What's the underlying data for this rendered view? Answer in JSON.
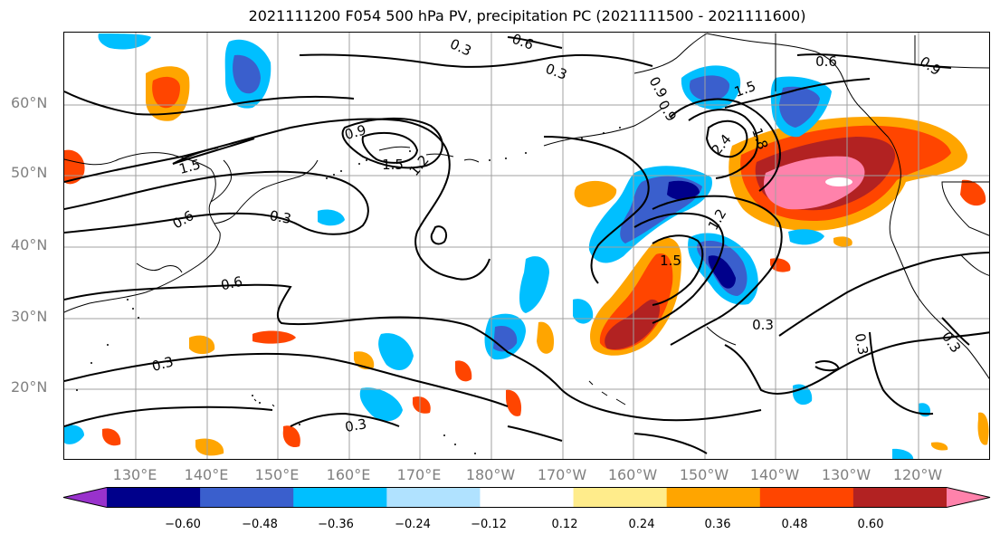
{
  "title": "2021111200 F054 500 hPa PV, precipitation PC (2021111500 - 2021111600)",
  "map": {
    "lat_labels": [
      "60°N",
      "50°N",
      "40°N",
      "30°N",
      "20°N"
    ],
    "lon_labels": [
      "130°E",
      "140°E",
      "150°E",
      "160°E",
      "170°E",
      "180°W",
      "170°W",
      "160°W",
      "150°W",
      "140°W",
      "130°W",
      "120°W"
    ],
    "contour_labels": [
      "0.3",
      "0.6",
      "0.3",
      "0.9",
      "1.5",
      "1.2",
      "0.3",
      "0.6",
      "0.3",
      "0.3",
      "0.6",
      "0.9",
      "0.9",
      "1.5",
      "1.8",
      "2.4",
      "1.2",
      "1.5",
      "0.3",
      "0.3",
      "0.3",
      "0.6",
      "1.5",
      "0.9"
    ]
  },
  "colorbar": {
    "ticks": [
      "−0.60",
      "−0.48",
      "−0.36",
      "−0.24",
      "−0.12",
      "0.12",
      "0.24",
      "0.36",
      "0.48",
      "0.60"
    ],
    "colors": [
      "#9932cc",
      "#00008b",
      "#3a5fcd",
      "#00bfff",
      "#b0e2ff",
      "#ffffff",
      "#ffec8b",
      "#ffa500",
      "#ff4500",
      "#b22222",
      "#ff82ab"
    ]
  }
}
